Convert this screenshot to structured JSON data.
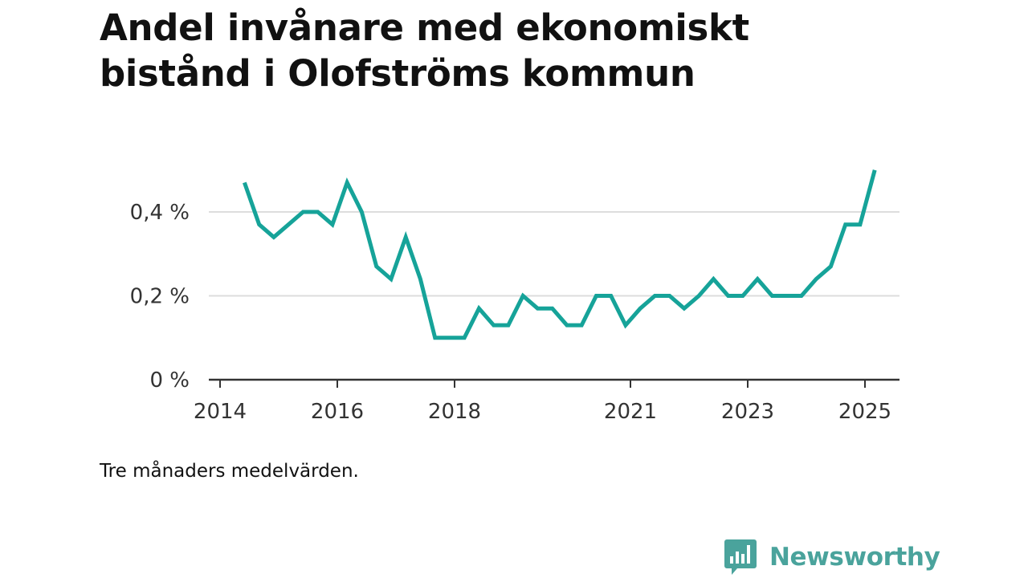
{
  "title_lines": [
    "Andel invånare med ekonomiskt",
    "bistånd i Olofströms kommun"
  ],
  "footnote": "Tre månaders medelvärden.",
  "brand": {
    "name": "Newsworthy",
    "icon": "bar-chart-speech-bubble-icon",
    "color": "#4aa39c"
  },
  "colors": {
    "line": "#16a399",
    "grid": "#dddddd",
    "axis": "#333333"
  },
  "chart_data": {
    "type": "line",
    "title": "Andel invånare med ekonomiskt bistånd i Olofströms kommun",
    "xlabel": "",
    "ylabel": "",
    "x_ticks": [
      "2014",
      "2016",
      "2018",
      "2021",
      "2023",
      "2025"
    ],
    "y_ticks": [
      "0 %",
      "0,2 %",
      "0,4 %"
    ],
    "ylim": [
      0,
      0.5
    ],
    "grid": true,
    "series": [
      {
        "x": [
          "2014-06",
          "2014-09",
          "2014-12",
          "2015-03",
          "2015-06",
          "2015-09",
          "2015-12",
          "2016-03",
          "2016-06",
          "2016-09",
          "2016-12",
          "2017-03",
          "2017-06",
          "2017-09",
          "2017-12",
          "2018-03",
          "2018-06",
          "2018-09",
          "2018-12",
          "2019-03",
          "2019-06",
          "2019-09",
          "2019-12",
          "2020-03",
          "2020-06",
          "2020-09",
          "2020-12",
          "2021-03",
          "2021-06",
          "2021-09",
          "2021-12",
          "2022-03",
          "2022-06",
          "2022-09",
          "2022-12",
          "2023-03",
          "2023-06",
          "2023-09",
          "2023-12",
          "2024-03",
          "2024-06",
          "2024-09",
          "2024-12",
          "2025-03"
        ],
        "y": [
          0.47,
          0.37,
          0.34,
          0.37,
          0.4,
          0.4,
          0.37,
          0.47,
          0.4,
          0.27,
          0.24,
          0.34,
          0.24,
          0.1,
          0.1,
          0.1,
          0.17,
          0.13,
          0.13,
          0.2,
          0.17,
          0.17,
          0.13,
          0.13,
          0.2,
          0.2,
          0.13,
          0.17,
          0.2,
          0.2,
          0.17,
          0.2,
          0.24,
          0.2,
          0.2,
          0.24,
          0.2,
          0.2,
          0.2,
          0.24,
          0.27,
          0.37,
          0.37,
          0.5
        ]
      }
    ]
  }
}
